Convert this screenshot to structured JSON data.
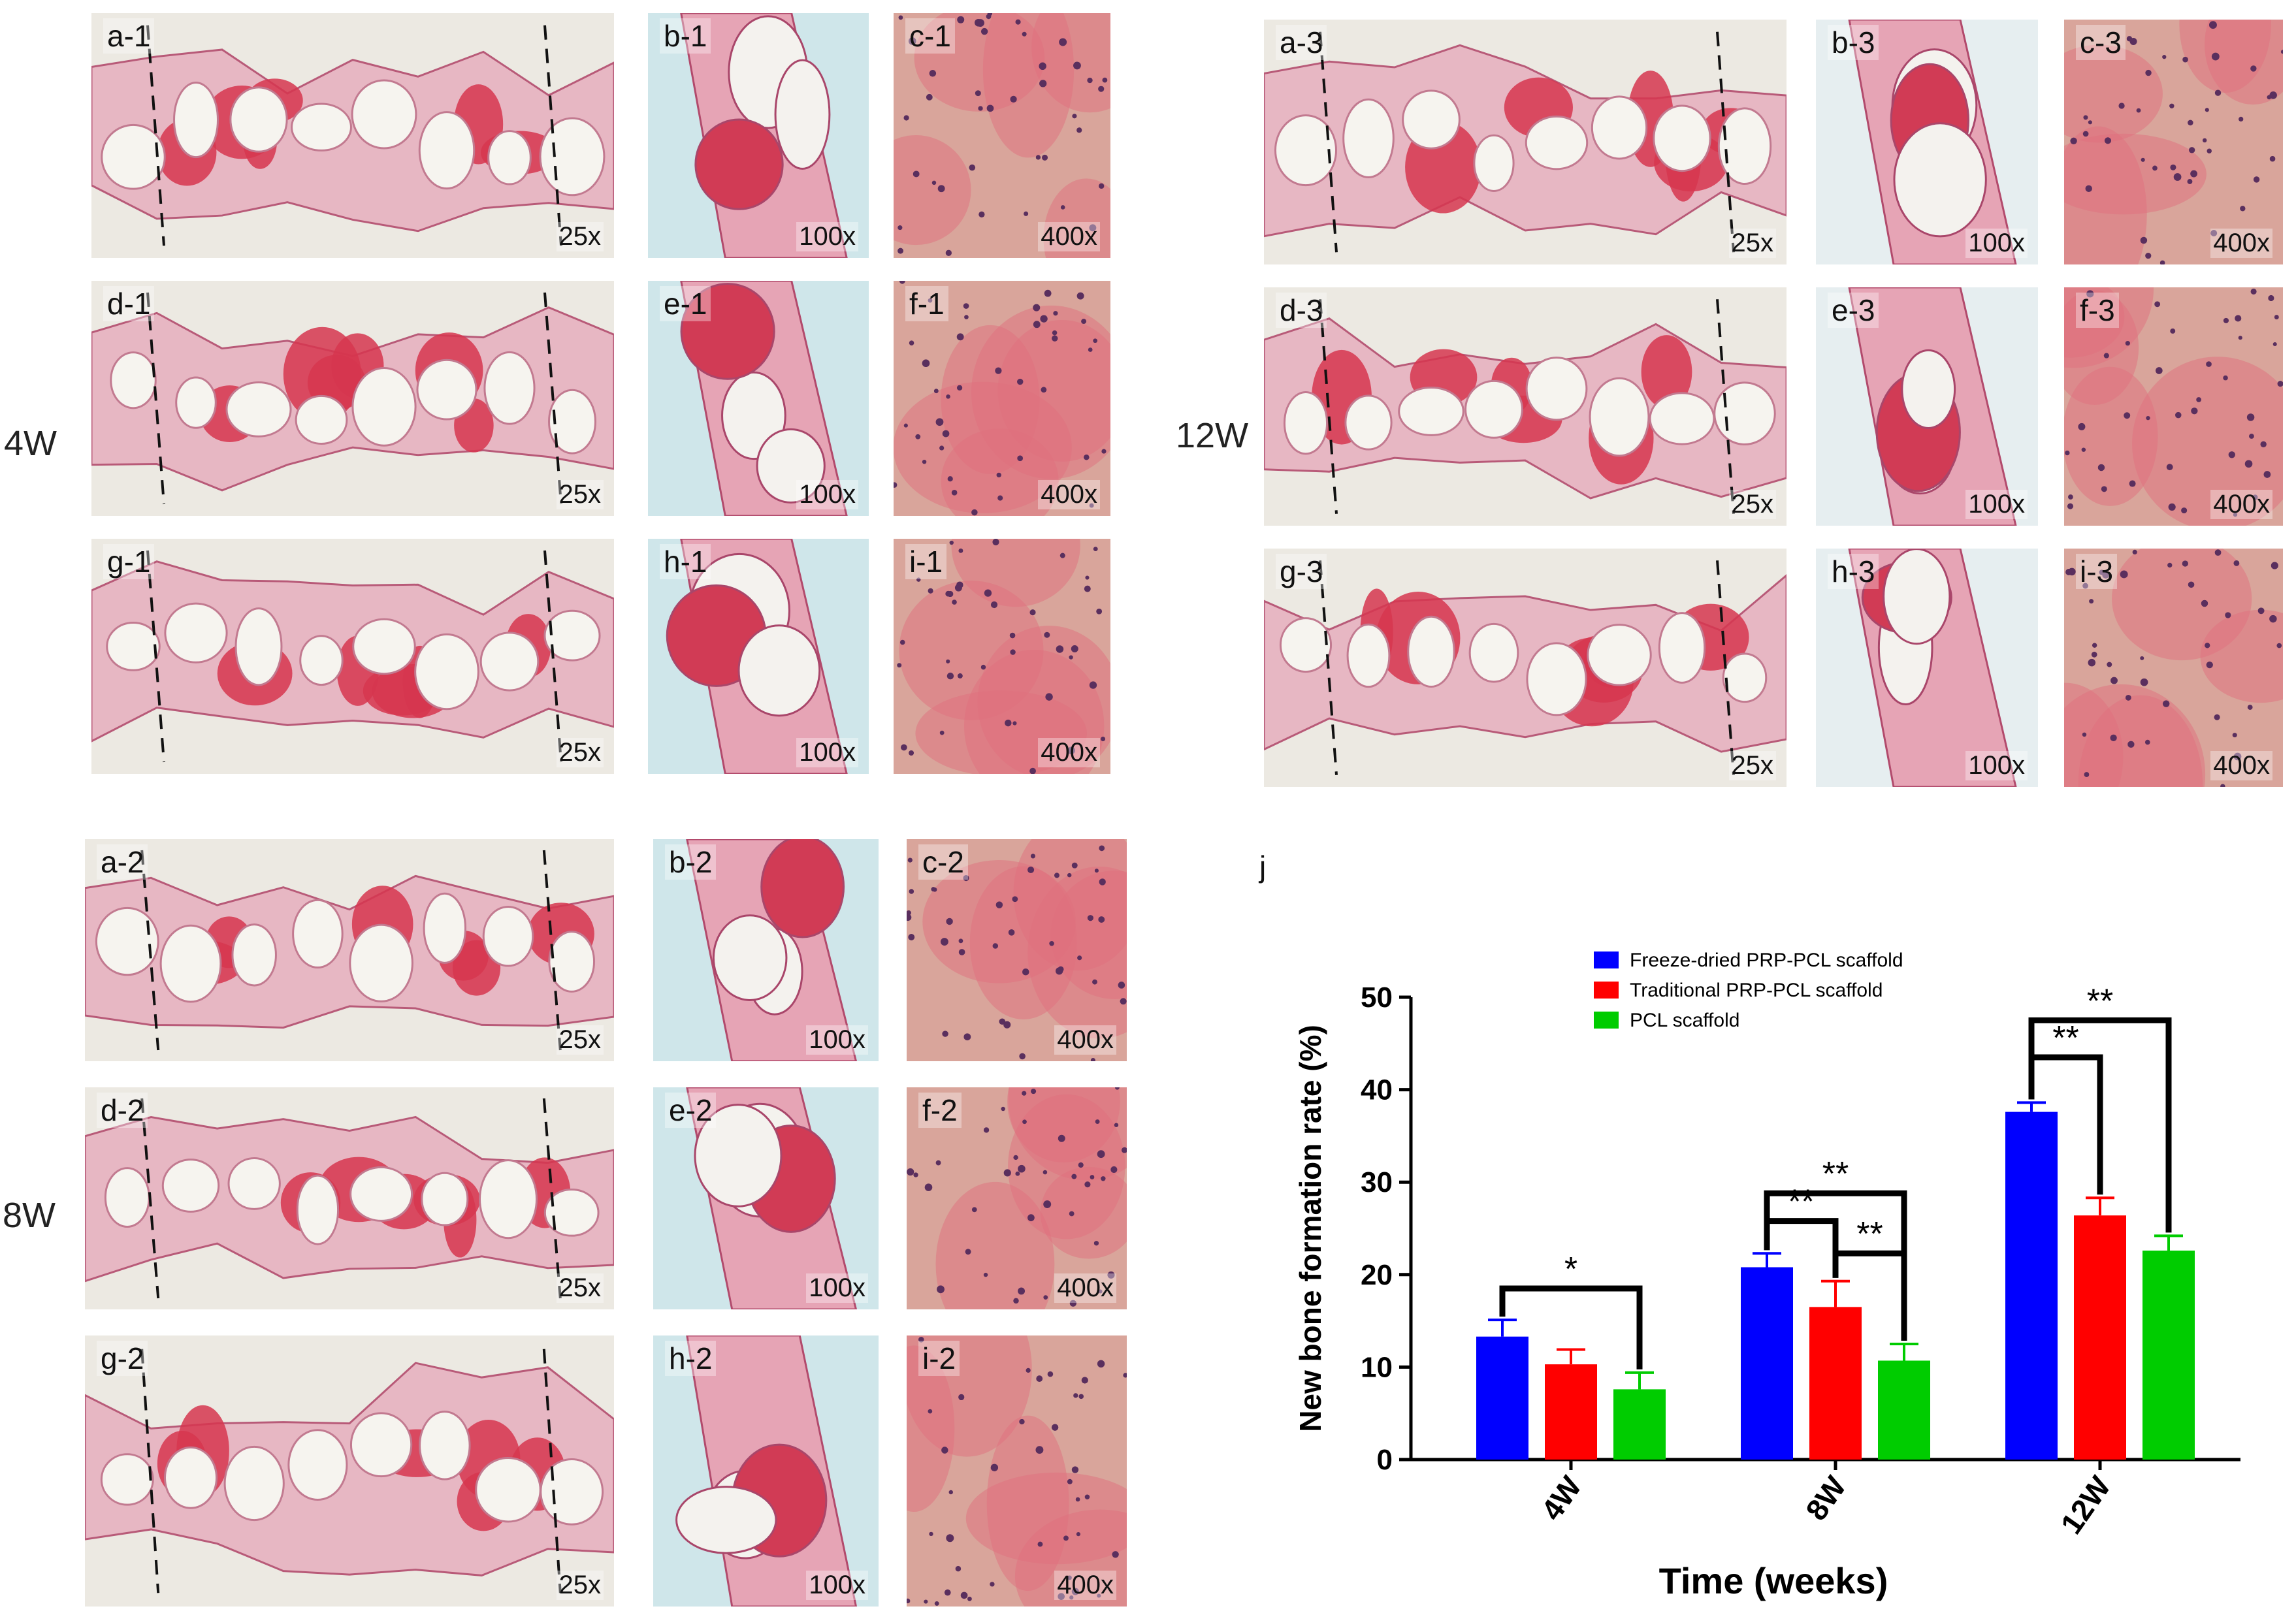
{
  "groups": [
    {
      "label": "4W",
      "panels": [
        {
          "label": "a-1",
          "mag": "25x",
          "kind": "low"
        },
        {
          "label": "b-1",
          "mag": "100x",
          "kind": "mid"
        },
        {
          "label": "c-1",
          "mag": "400x",
          "kind": "high"
        },
        {
          "label": "d-1",
          "mag": "25x",
          "kind": "low"
        },
        {
          "label": "e-1",
          "mag": "100x",
          "kind": "mid"
        },
        {
          "label": "f-1",
          "mag": "400x",
          "kind": "high"
        },
        {
          "label": "g-1",
          "mag": "25x",
          "kind": "low"
        },
        {
          "label": "h-1",
          "mag": "100x",
          "kind": "mid"
        },
        {
          "label": "i-1",
          "mag": "400x",
          "kind": "high"
        }
      ]
    },
    {
      "label": "8W",
      "panels": [
        {
          "label": "a-2",
          "mag": "25x",
          "kind": "low"
        },
        {
          "label": "b-2",
          "mag": "100x",
          "kind": "mid"
        },
        {
          "label": "c-2",
          "mag": "400x",
          "kind": "high"
        },
        {
          "label": "d-2",
          "mag": "25x",
          "kind": "low"
        },
        {
          "label": "e-2",
          "mag": "100x",
          "kind": "mid"
        },
        {
          "label": "f-2",
          "mag": "400x",
          "kind": "high"
        },
        {
          "label": "g-2",
          "mag": "25x",
          "kind": "low"
        },
        {
          "label": "h-2",
          "mag": "100x",
          "kind": "mid"
        },
        {
          "label": "i-2",
          "mag": "400x",
          "kind": "high"
        }
      ]
    },
    {
      "label": "12W",
      "panels": [
        {
          "label": "a-3",
          "mag": "25x",
          "kind": "low"
        },
        {
          "label": "b-3",
          "mag": "100x",
          "kind": "mid"
        },
        {
          "label": "c-3",
          "mag": "400x",
          "kind": "high"
        },
        {
          "label": "d-3",
          "mag": "25x",
          "kind": "low"
        },
        {
          "label": "e-3",
          "mag": "100x",
          "kind": "mid"
        },
        {
          "label": "f-3",
          "mag": "400x",
          "kind": "high"
        },
        {
          "label": "g-3",
          "mag": "25x",
          "kind": "low"
        },
        {
          "label": "h-3",
          "mag": "100x",
          "kind": "mid"
        },
        {
          "label": "i-3",
          "mag": "400x",
          "kind": "high"
        }
      ]
    }
  ],
  "chart_panel_label": "j",
  "chart_data": {
    "type": "bar",
    "categories": [
      "4W",
      "8W",
      "12W"
    ],
    "series": [
      {
        "name": "Freeze-dried PRP-PCL scaffold",
        "color": "#0000ff",
        "values": [
          13.3,
          20.8,
          37.6
        ],
        "errors": [
          1.8,
          1.5,
          1.0
        ]
      },
      {
        "name": "Traditional PRP-PCL scaffold",
        "color": "#ff0000",
        "values": [
          10.3,
          16.5,
          26.4
        ],
        "errors": [
          1.6,
          2.8,
          1.9
        ]
      },
      {
        "name": "PCL scaffold",
        "color": "#00cc00",
        "values": [
          7.6,
          10.7,
          22.6
        ],
        "errors": [
          1.8,
          1.8,
          1.6
        ]
      }
    ],
    "xlabel": "Time (weeks)",
    "ylabel": "New bone formation rate (%)",
    "ylim": [
      0,
      50
    ],
    "yticks": [
      0,
      10,
      20,
      30,
      40,
      50
    ],
    "legend_position": "top-left",
    "significance": [
      {
        "category": 0,
        "from": 0,
        "to": 2,
        "label": "*",
        "level": 18.5
      },
      {
        "category": 1,
        "from": 0,
        "to": 1,
        "label": "**",
        "level": 25.8
      },
      {
        "category": 1,
        "from": 0,
        "to": 2,
        "label": "**",
        "level": 28.8
      },
      {
        "category": 1,
        "from": 1,
        "to": 2,
        "label": "**",
        "level": 22.3
      },
      {
        "category": 2,
        "from": 0,
        "to": 1,
        "label": "**",
        "level": 43.5
      },
      {
        "category": 2,
        "from": 0,
        "to": 2,
        "label": "**",
        "level": 47.5
      }
    ]
  }
}
